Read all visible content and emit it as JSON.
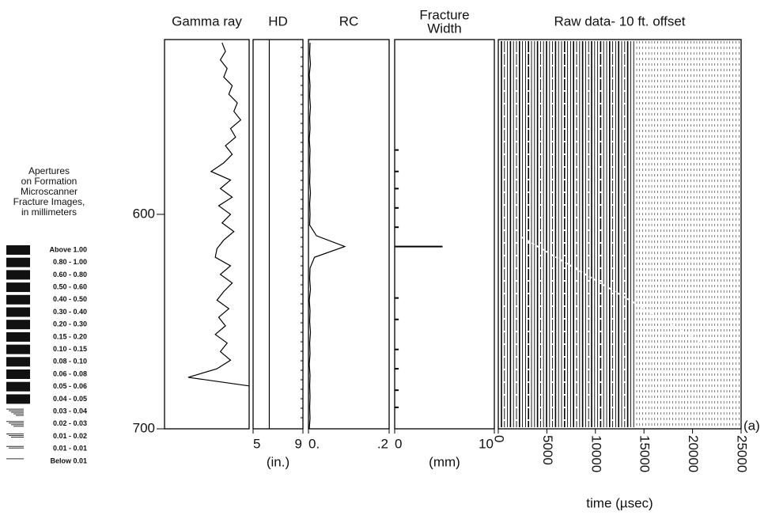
{
  "depth": {
    "ylim": [
      518.5,
      700
    ],
    "yticks": [
      600,
      700
    ]
  },
  "legend": {
    "title": [
      "Apertures",
      "on Formation",
      "Microscanner",
      "Fracture Images,",
      "in millimeters"
    ],
    "entries": [
      "Above  1.00",
      "0.80 - 1.00",
      "0.60 - 0.80",
      "0.50 - 0.60",
      "0.40 - 0.50",
      "0.30 - 0.40",
      "0.20 - 0.30",
      "0.15 - 0.20",
      "0.10 - 0.15",
      "0.08 - 0.10",
      "0.06 - 0.08",
      "0.05 - 0.06",
      "0.04 - 0.05",
      "0.03 - 0.04",
      "0.02 - 0.03",
      "0.01 - 0.02",
      "0.01 - 0.01",
      "Below  0.01"
    ]
  },
  "chart_data": [
    {
      "type": "line",
      "title": "Gamma ray",
      "color": "#000",
      "xlim": [
        0,
        100
      ],
      "depth": [
        520,
        524,
        528,
        532,
        536,
        540,
        544,
        548,
        552,
        556,
        560,
        564,
        568,
        572,
        576,
        580,
        584,
        588,
        592,
        596,
        600,
        604,
        608,
        612,
        616,
        620,
        624,
        628,
        632,
        636,
        640,
        644,
        648,
        652,
        656,
        660,
        664,
        668,
        672,
        676,
        680
      ],
      "values": [
        68,
        72,
        66,
        74,
        70,
        80,
        76,
        86,
        82,
        90,
        78,
        84,
        72,
        80,
        70,
        55,
        78,
        66,
        80,
        64,
        78,
        68,
        82,
        70,
        62,
        60,
        78,
        66,
        80,
        70,
        62,
        76,
        64,
        72,
        60,
        74,
        66,
        78,
        62,
        28,
        100
      ]
    },
    {
      "type": "line",
      "title": "HD",
      "color": "#000",
      "xlim": [
        5,
        9
      ],
      "xticks": [
        5,
        9
      ],
      "xlabel": "(in.)",
      "depth": [
        518.5,
        700
      ],
      "values": [
        6.3,
        6.3
      ]
    },
    {
      "type": "line",
      "title": "RC",
      "color": "#000",
      "xlim": [
        0,
        0.2
      ],
      "xticks": [
        {
          "value": 0,
          "label": "0."
        },
        {
          "value": 0.2,
          "label": ".2"
        }
      ],
      "depth": [
        520,
        525,
        530,
        535,
        540,
        545,
        550,
        555,
        560,
        565,
        570,
        575,
        580,
        585,
        590,
        595,
        600,
        605,
        610,
        615,
        620,
        625,
        630,
        635,
        640,
        645,
        650,
        655,
        660,
        665,
        670,
        675,
        680,
        685,
        690,
        695,
        700
      ],
      "values": [
        0.004,
        0.003,
        0.005,
        0.002,
        0.004,
        0.003,
        0.005,
        0.003,
        0.004,
        0.002,
        0.004,
        0.003,
        0.004,
        0.003,
        0.005,
        0.003,
        0.004,
        0.003,
        0.02,
        0.09,
        0.015,
        0.004,
        0.003,
        0.005,
        0.002,
        0.004,
        0.003,
        0.005,
        0.003,
        0.004,
        0.002,
        0.004,
        0.003,
        0.004,
        0.003,
        0.004,
        0.002
      ]
    },
    {
      "type": "bar",
      "title": [
        "Fracture",
        "Width"
      ],
      "color": "#000",
      "xlim": [
        0,
        10
      ],
      "xticks": [
        0,
        10
      ],
      "xlabel": "(mm)",
      "depth": [
        570,
        580,
        588,
        597,
        606,
        615,
        639,
        649,
        663,
        672,
        682,
        690
      ],
      "values": [
        0.4,
        0.4,
        0.4,
        0.4,
        0.4,
        4.8,
        0.4,
        0.4,
        0.4,
        0.4,
        0.4,
        0.4
      ]
    },
    {
      "type": "traces",
      "title": "Raw data- 10 ft. offset",
      "xlim": [
        0,
        25000
      ],
      "xticks": [
        0,
        5000,
        10000,
        15000,
        20000,
        25000
      ],
      "xlabel": "time (µsec)",
      "annotation": "(a)"
    }
  ]
}
